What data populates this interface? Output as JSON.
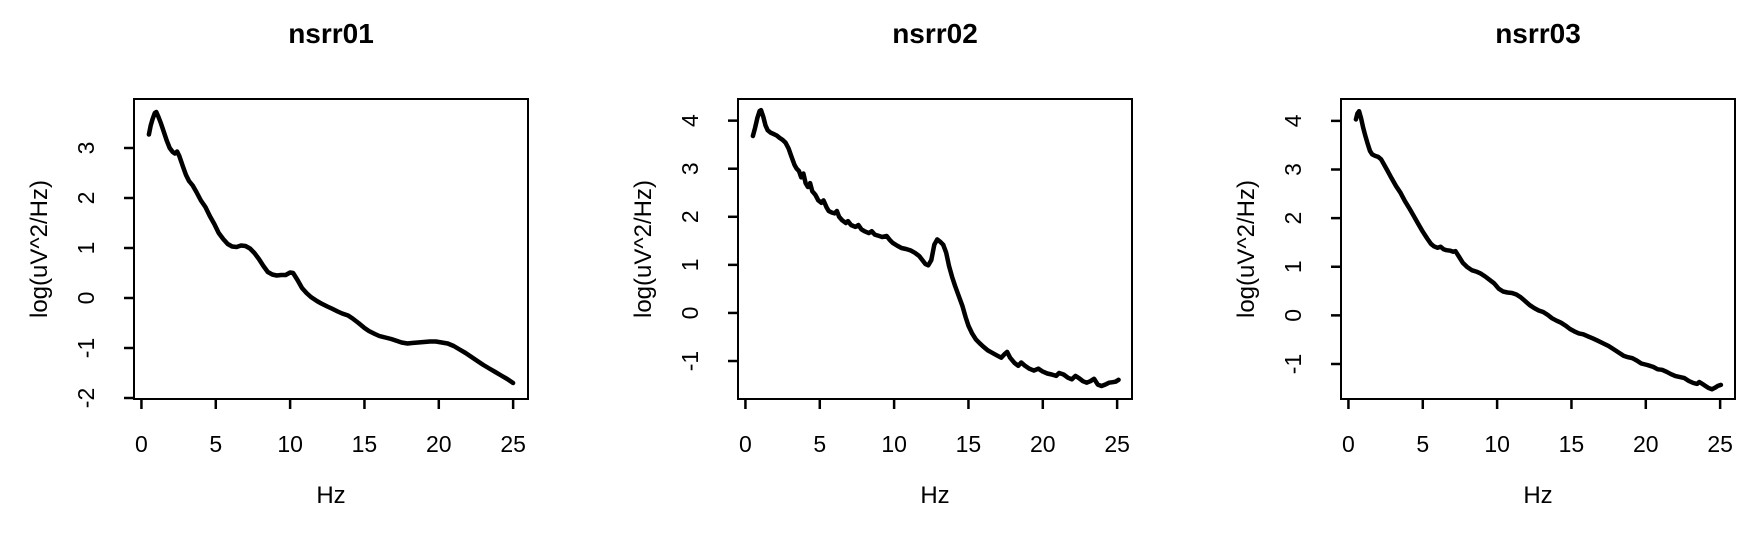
{
  "figure": {
    "colors": {
      "background": "#ffffff",
      "line": "#000000",
      "text": "#000000"
    }
  },
  "chart_data": [
    {
      "type": "line",
      "title": "nsrr01",
      "xlabel": "Hz",
      "ylabel": "log(uV^2/Hz)",
      "xticks": [
        0,
        5,
        10,
        15,
        20,
        25
      ],
      "yticks": [
        -2,
        -1,
        0,
        1,
        2,
        3
      ],
      "xlim": [
        -0.5,
        26.0
      ],
      "ylim": [
        -2.02,
        3.98
      ],
      "grid": false,
      "legend": null,
      "points": [
        [
          0.5,
          3.27
        ],
        [
          0.62,
          3.45
        ],
        [
          0.75,
          3.58
        ],
        [
          0.9,
          3.7
        ],
        [
          1.0,
          3.72
        ],
        [
          1.15,
          3.62
        ],
        [
          1.3,
          3.5
        ],
        [
          1.5,
          3.33
        ],
        [
          1.7,
          3.15
        ],
        [
          1.9,
          3.0
        ],
        [
          2.1,
          2.92
        ],
        [
          2.25,
          2.89
        ],
        [
          2.4,
          2.93
        ],
        [
          2.55,
          2.84
        ],
        [
          2.8,
          2.62
        ],
        [
          3.0,
          2.46
        ],
        [
          3.2,
          2.34
        ],
        [
          3.45,
          2.25
        ],
        [
          3.7,
          2.12
        ],
        [
          4.0,
          1.95
        ],
        [
          4.3,
          1.82
        ],
        [
          4.6,
          1.64
        ],
        [
          4.9,
          1.48
        ],
        [
          5.2,
          1.3
        ],
        [
          5.5,
          1.18
        ],
        [
          5.8,
          1.08
        ],
        [
          6.1,
          1.03
        ],
        [
          6.4,
          1.02
        ],
        [
          6.7,
          1.05
        ],
        [
          7.0,
          1.04
        ],
        [
          7.3,
          0.99
        ],
        [
          7.6,
          0.9
        ],
        [
          7.9,
          0.78
        ],
        [
          8.2,
          0.64
        ],
        [
          8.5,
          0.52
        ],
        [
          8.8,
          0.47
        ],
        [
          9.1,
          0.45
        ],
        [
          9.4,
          0.46
        ],
        [
          9.7,
          0.46
        ],
        [
          10.0,
          0.51
        ],
        [
          10.2,
          0.5
        ],
        [
          10.5,
          0.36
        ],
        [
          10.8,
          0.2
        ],
        [
          11.1,
          0.1
        ],
        [
          11.4,
          0.02
        ],
        [
          11.8,
          -0.06
        ],
        [
          12.1,
          -0.11
        ],
        [
          12.5,
          -0.17
        ],
        [
          12.8,
          -0.21
        ],
        [
          13.2,
          -0.27
        ],
        [
          13.5,
          -0.31
        ],
        [
          13.9,
          -0.35
        ],
        [
          14.2,
          -0.41
        ],
        [
          14.6,
          -0.5
        ],
        [
          15.0,
          -0.6
        ],
        [
          15.3,
          -0.66
        ],
        [
          15.7,
          -0.72
        ],
        [
          16.0,
          -0.76
        ],
        [
          16.4,
          -0.79
        ],
        [
          16.8,
          -0.82
        ],
        [
          17.1,
          -0.85
        ],
        [
          17.5,
          -0.89
        ],
        [
          17.9,
          -0.91
        ],
        [
          18.2,
          -0.9
        ],
        [
          18.6,
          -0.89
        ],
        [
          19.0,
          -0.88
        ],
        [
          19.4,
          -0.87
        ],
        [
          19.8,
          -0.87
        ],
        [
          20.2,
          -0.89
        ],
        [
          20.6,
          -0.91
        ],
        [
          21.0,
          -0.96
        ],
        [
          21.4,
          -1.03
        ],
        [
          21.8,
          -1.1
        ],
        [
          22.2,
          -1.18
        ],
        [
          22.6,
          -1.26
        ],
        [
          23.0,
          -1.34
        ],
        [
          23.4,
          -1.41
        ],
        [
          23.8,
          -1.48
        ],
        [
          24.2,
          -1.55
        ],
        [
          24.6,
          -1.62
        ],
        [
          25.0,
          -1.7
        ]
      ]
    },
    {
      "type": "line",
      "title": "nsrr02",
      "xlabel": "Hz",
      "ylabel": "log(uV^2/Hz)",
      "xticks": [
        0,
        5,
        10,
        15,
        20,
        25
      ],
      "yticks": [
        -1,
        0,
        1,
        2,
        3,
        4
      ],
      "xlim": [
        -0.5,
        26.0
      ],
      "ylim": [
        -1.79,
        4.45
      ],
      "grid": false,
      "legend": null,
      "points": [
        [
          0.5,
          3.68
        ],
        [
          0.65,
          3.85
        ],
        [
          0.8,
          4.05
        ],
        [
          0.95,
          4.2
        ],
        [
          1.05,
          4.22
        ],
        [
          1.2,
          4.08
        ],
        [
          1.35,
          3.9
        ],
        [
          1.5,
          3.8
        ],
        [
          1.7,
          3.75
        ],
        [
          1.9,
          3.72
        ],
        [
          2.1,
          3.69
        ],
        [
          2.3,
          3.64
        ],
        [
          2.5,
          3.6
        ],
        [
          2.7,
          3.54
        ],
        [
          2.9,
          3.42
        ],
        [
          3.1,
          3.25
        ],
        [
          3.3,
          3.08
        ],
        [
          3.45,
          3.0
        ],
        [
          3.6,
          2.95
        ],
        [
          3.75,
          2.82
        ],
        [
          3.9,
          2.9
        ],
        [
          4.05,
          2.7
        ],
        [
          4.2,
          2.62
        ],
        [
          4.35,
          2.7
        ],
        [
          4.5,
          2.53
        ],
        [
          4.7,
          2.46
        ],
        [
          4.9,
          2.34
        ],
        [
          5.1,
          2.29
        ],
        [
          5.25,
          2.34
        ],
        [
          5.45,
          2.2
        ],
        [
          5.6,
          2.12
        ],
        [
          5.8,
          2.09
        ],
        [
          6.0,
          2.07
        ],
        [
          6.15,
          2.12
        ],
        [
          6.3,
          2.0
        ],
        [
          6.5,
          1.93
        ],
        [
          6.75,
          1.87
        ],
        [
          6.9,
          1.91
        ],
        [
          7.1,
          1.83
        ],
        [
          7.4,
          1.79
        ],
        [
          7.6,
          1.83
        ],
        [
          7.8,
          1.74
        ],
        [
          8.0,
          1.7
        ],
        [
          8.3,
          1.66
        ],
        [
          8.5,
          1.7
        ],
        [
          8.7,
          1.63
        ],
        [
          9.0,
          1.6
        ],
        [
          9.2,
          1.58
        ],
        [
          9.5,
          1.6
        ],
        [
          9.7,
          1.52
        ],
        [
          9.9,
          1.46
        ],
        [
          10.2,
          1.4
        ],
        [
          10.5,
          1.35
        ],
        [
          10.8,
          1.33
        ],
        [
          11.1,
          1.3
        ],
        [
          11.4,
          1.25
        ],
        [
          11.7,
          1.18
        ],
        [
          11.9,
          1.1
        ],
        [
          12.1,
          1.02
        ],
        [
          12.3,
          0.99
        ],
        [
          12.5,
          1.1
        ],
        [
          12.7,
          1.42
        ],
        [
          12.9,
          1.53
        ],
        [
          13.1,
          1.48
        ],
        [
          13.3,
          1.42
        ],
        [
          13.5,
          1.25
        ],
        [
          13.7,
          0.97
        ],
        [
          13.9,
          0.75
        ],
        [
          14.1,
          0.56
        ],
        [
          14.35,
          0.35
        ],
        [
          14.6,
          0.14
        ],
        [
          14.8,
          -0.08
        ],
        [
          15.0,
          -0.27
        ],
        [
          15.25,
          -0.43
        ],
        [
          15.5,
          -0.55
        ],
        [
          15.75,
          -0.63
        ],
        [
          16.0,
          -0.7
        ],
        [
          16.3,
          -0.78
        ],
        [
          16.6,
          -0.83
        ],
        [
          16.9,
          -0.88
        ],
        [
          17.2,
          -0.93
        ],
        [
          17.45,
          -0.85
        ],
        [
          17.6,
          -0.81
        ],
        [
          17.8,
          -0.93
        ],
        [
          18.1,
          -1.04
        ],
        [
          18.35,
          -1.1
        ],
        [
          18.55,
          -1.03
        ],
        [
          18.8,
          -1.1
        ],
        [
          19.1,
          -1.16
        ],
        [
          19.4,
          -1.2
        ],
        [
          19.7,
          -1.16
        ],
        [
          20.0,
          -1.22
        ],
        [
          20.3,
          -1.26
        ],
        [
          20.6,
          -1.28
        ],
        [
          20.9,
          -1.31
        ],
        [
          21.1,
          -1.25
        ],
        [
          21.4,
          -1.28
        ],
        [
          21.7,
          -1.35
        ],
        [
          21.95,
          -1.38
        ],
        [
          22.2,
          -1.31
        ],
        [
          22.45,
          -1.36
        ],
        [
          22.7,
          -1.42
        ],
        [
          22.95,
          -1.45
        ],
        [
          23.2,
          -1.42
        ],
        [
          23.45,
          -1.37
        ],
        [
          23.7,
          -1.49
        ],
        [
          23.95,
          -1.52
        ],
        [
          24.2,
          -1.49
        ],
        [
          24.45,
          -1.45
        ],
        [
          24.7,
          -1.44
        ],
        [
          24.9,
          -1.43
        ],
        [
          25.1,
          -1.39
        ]
      ]
    },
    {
      "type": "line",
      "title": "nsrr03",
      "xlabel": "Hz",
      "ylabel": "log(uV^2/Hz)",
      "xticks": [
        0,
        5,
        10,
        15,
        20,
        25
      ],
      "yticks": [
        -1,
        0,
        1,
        2,
        3,
        4
      ],
      "xlim": [
        -0.5,
        26.0
      ],
      "ylim": [
        -1.72,
        4.45
      ],
      "grid": false,
      "legend": null,
      "points": [
        [
          0.5,
          4.03
        ],
        [
          0.6,
          4.15
        ],
        [
          0.72,
          4.2
        ],
        [
          0.85,
          4.05
        ],
        [
          1.0,
          3.85
        ],
        [
          1.15,
          3.68
        ],
        [
          1.3,
          3.52
        ],
        [
          1.45,
          3.38
        ],
        [
          1.6,
          3.31
        ],
        [
          1.8,
          3.28
        ],
        [
          2.0,
          3.26
        ],
        [
          2.2,
          3.21
        ],
        [
          2.4,
          3.1
        ],
        [
          2.6,
          2.99
        ],
        [
          2.9,
          2.82
        ],
        [
          3.2,
          2.66
        ],
        [
          3.5,
          2.52
        ],
        [
          3.8,
          2.35
        ],
        [
          4.1,
          2.2
        ],
        [
          4.4,
          2.04
        ],
        [
          4.7,
          1.88
        ],
        [
          5.0,
          1.72
        ],
        [
          5.3,
          1.58
        ],
        [
          5.55,
          1.47
        ],
        [
          5.75,
          1.42
        ],
        [
          6.0,
          1.39
        ],
        [
          6.2,
          1.41
        ],
        [
          6.4,
          1.36
        ],
        [
          6.6,
          1.34
        ],
        [
          6.85,
          1.33
        ],
        [
          7.05,
          1.31
        ],
        [
          7.2,
          1.32
        ],
        [
          7.45,
          1.2
        ],
        [
          7.7,
          1.08
        ],
        [
          8.0,
          0.99
        ],
        [
          8.3,
          0.93
        ],
        [
          8.6,
          0.9
        ],
        [
          8.9,
          0.86
        ],
        [
          9.2,
          0.8
        ],
        [
          9.5,
          0.73
        ],
        [
          9.8,
          0.66
        ],
        [
          10.1,
          0.55
        ],
        [
          10.4,
          0.49
        ],
        [
          10.7,
          0.47
        ],
        [
          11.0,
          0.46
        ],
        [
          11.3,
          0.43
        ],
        [
          11.6,
          0.37
        ],
        [
          11.9,
          0.29
        ],
        [
          12.2,
          0.21
        ],
        [
          12.5,
          0.15
        ],
        [
          12.8,
          0.1
        ],
        [
          13.1,
          0.07
        ],
        [
          13.4,
          0.01
        ],
        [
          13.7,
          -0.06
        ],
        [
          14.0,
          -0.11
        ],
        [
          14.3,
          -0.15
        ],
        [
          14.6,
          -0.21
        ],
        [
          14.9,
          -0.28
        ],
        [
          15.2,
          -0.33
        ],
        [
          15.5,
          -0.37
        ],
        [
          15.8,
          -0.39
        ],
        [
          16.1,
          -0.43
        ],
        [
          16.4,
          -0.47
        ],
        [
          16.7,
          -0.51
        ],
        [
          17.1,
          -0.57
        ],
        [
          17.5,
          -0.63
        ],
        [
          17.9,
          -0.71
        ],
        [
          18.2,
          -0.77
        ],
        [
          18.5,
          -0.83
        ],
        [
          18.8,
          -0.86
        ],
        [
          19.1,
          -0.88
        ],
        [
          19.4,
          -0.93
        ],
        [
          19.7,
          -0.99
        ],
        [
          20.1,
          -1.02
        ],
        [
          20.5,
          -1.06
        ],
        [
          20.8,
          -1.11
        ],
        [
          21.1,
          -1.12
        ],
        [
          21.4,
          -1.16
        ],
        [
          21.7,
          -1.21
        ],
        [
          22.0,
          -1.25
        ],
        [
          22.3,
          -1.27
        ],
        [
          22.6,
          -1.29
        ],
        [
          22.9,
          -1.35
        ],
        [
          23.2,
          -1.39
        ],
        [
          23.45,
          -1.41
        ],
        [
          23.6,
          -1.37
        ],
        [
          23.8,
          -1.41
        ],
        [
          24.0,
          -1.45
        ],
        [
          24.2,
          -1.49
        ],
        [
          24.45,
          -1.52
        ],
        [
          24.65,
          -1.49
        ],
        [
          24.85,
          -1.45
        ],
        [
          25.05,
          -1.43
        ]
      ]
    }
  ]
}
